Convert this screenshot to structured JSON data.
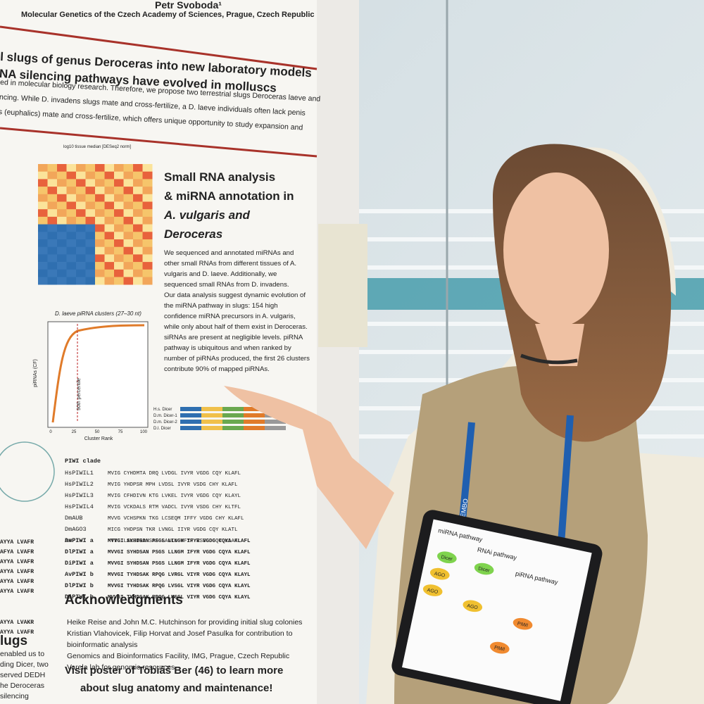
{
  "poster": {
    "header": {
      "author": "Petr Svoboda¹",
      "affiliation": "Molecular Genetics of the Czech Academy of Sciences, Prague, Czech Republic"
    },
    "title_lines": [
      "l slugs of genus Deroceras into new laboratory models",
      "NA silencing pathways have evolved in molluscs"
    ],
    "intro_lines": [
      "ed in molecular biology research. Therefore, we propose two terrestrial slugs Deroceras laeve and",
      "ncing. While D. invadens slugs mate and cross-fertilize, a D. laeve individuals often lack penis",
      "s (euphalics) mate and cross-fertilize, which offers unique opportunity to study expansion and"
    ],
    "heatmap_title": "log10 tissue median [DESeq2 norm]",
    "section": {
      "title_lines": [
        "Small RNA analysis",
        "& miRNA annotation in",
        "A. vulgaris and",
        "Deroceras"
      ],
      "body_lines": [
        "We sequenced and annotated miRNAs and",
        "other small RNAs from different tissues of A.",
        "vulgaris and D. laeve. Additionally, we",
        "sequenced small RNAs from D. invadens.",
        "Our data analysis suggest dynamic evolution of",
        "the miRNA pathway in slugs: 154 high",
        "confidence miRNA precursors in A. vulgaris,",
        "while only about half of them exist in Deroceras.",
        "siRNAs are present at negligible levels. piRNA",
        "pathway is ubiquitous and when ranked by",
        "number of piRNAs produced, the first 26 clusters",
        "contribute 90% of mapped piRNAs."
      ]
    },
    "plot": {
      "title": "D. laeve piRNA clusters (27–30 nt)",
      "y_label": "piRNAs (CF)",
      "x_label": "Cluster Rank",
      "annotation": "90th percentile",
      "xticks": [
        0,
        25,
        50,
        75,
        100
      ]
    },
    "domains": {
      "rows": [
        "H.s. Dicer",
        "D.m. Dicer-1",
        "D.m. Dicer-2",
        "D.l. Dicer"
      ]
    },
    "alignment": {
      "header": "PIWI clade",
      "rows": [
        {
          "name": "HsPIWIL1",
          "seq": "MVIG  CYHDMTA  DRQ  LVDGL  IVYR  VGDG  CQY  KLAFL"
        },
        {
          "name": "HsPIWIL2",
          "seq": "MVIG  YHDPSR  MPH  LVDSL  IVYR  VSDG  CHY  KLAFL"
        },
        {
          "name": "HsPIWIL3",
          "seq": "MVIG  CFHDIVN  KTG  LVKEL  IVYR  VGDG  CQY  KLAYL"
        },
        {
          "name": "HsPIWIL4",
          "seq": "MVIG  VCKDALS  RTM  VADCL  IVYR  VSDG  CHY  KLTFL"
        },
        {
          "name": "DmAUB",
          "seq": "MVVG  VCHSPKN  TKG  LCSEQM  IFFY  VGDG  CHY  KLAFL"
        },
        {
          "name": "DmAGO3",
          "seq": "MICG  YHDPSN  TKR  LVNGL  IIYR  VGDG  CQY  KLATL"
        },
        {
          "name": "DmPIWI",
          "seq": "MTIG  LAKSTRD  SAF  LANTL  VFYR  VSSG  CQY  KLAFL"
        },
        {
          "name": "AvPIWI a",
          "seq": "MVVGI  SYHDSAN  PSGS  LLNGM  IFYR  VGDG  CQYA  KLAFL"
        },
        {
          "name": "DlPIWI a",
          "seq": "MVVGI  SYHDSAN  PSGS  LLNGM  IFYR  VGDG  CQYA  KLAFL"
        },
        {
          "name": "DiPIWI a",
          "seq": "MVVGI  SYHDSAN  PSGS  LLNGM  IFYR  VGDG  CQYA  KLAFL"
        },
        {
          "name": "AvPIWI b",
          "seq": "MVVGI  TYHDSAK  RPQG  LVRGL  VIYR  VGDG  CQYA  KLAYL"
        },
        {
          "name": "DlPIWI b",
          "seq": "MVVGI  TYHDSAK  RPQG  LVSGL  VIYR  VGDG  CQYA  KLAYL"
        },
        {
          "name": "DiPIWI b",
          "seq": "MVVGI  TYHDSAK  RPQG  LVSGL  VIYR  VGDG  CQYA  KLAYL"
        }
      ]
    },
    "left_fragments": [
      "AYYA  LVAFR",
      "AFYA  LVAFR",
      "AYYA  LVAFR",
      "AYYA  LVAFR",
      "AYYA  LVAFR",
      "AYYA  LVAFR",
      "AYYA  LVAKR",
      "AYYA  LVAFR"
    ],
    "acknowledgments": {
      "title": "Acknowledgments",
      "lines": [
        "Heike Reise and John M.C. Hutchinson for providing initial slug colonies",
        "Kristian Vlahovicek, Filip Horvat and Josef Pasulka for contribution to",
        "bioinformatic analysis",
        "Genomics and Bioinformatics Facility, IMG, Prague, Czech Republic",
        "Varela lab for genomic resources"
      ]
    },
    "side_heading": "lugs",
    "side_lines": [
      "enabled us to",
      "ding Dicer, two",
      "served DEDH",
      "he Deroceras",
      "silencing"
    ],
    "visit_lines": [
      "Visit poster of Tobiáš Ber (46) to learn more",
      "about slug anatomy and maintenance!"
    ]
  },
  "tablet": {
    "pathways": [
      "miRNA pathway",
      "RNAi pathway",
      "piRNA pathway"
    ],
    "labels": [
      "Dicer",
      "Dicer",
      "AGO",
      "AGO",
      "AGO",
      "PIWI",
      "PIWI"
    ]
  },
  "lanyard": "EMBO"
}
